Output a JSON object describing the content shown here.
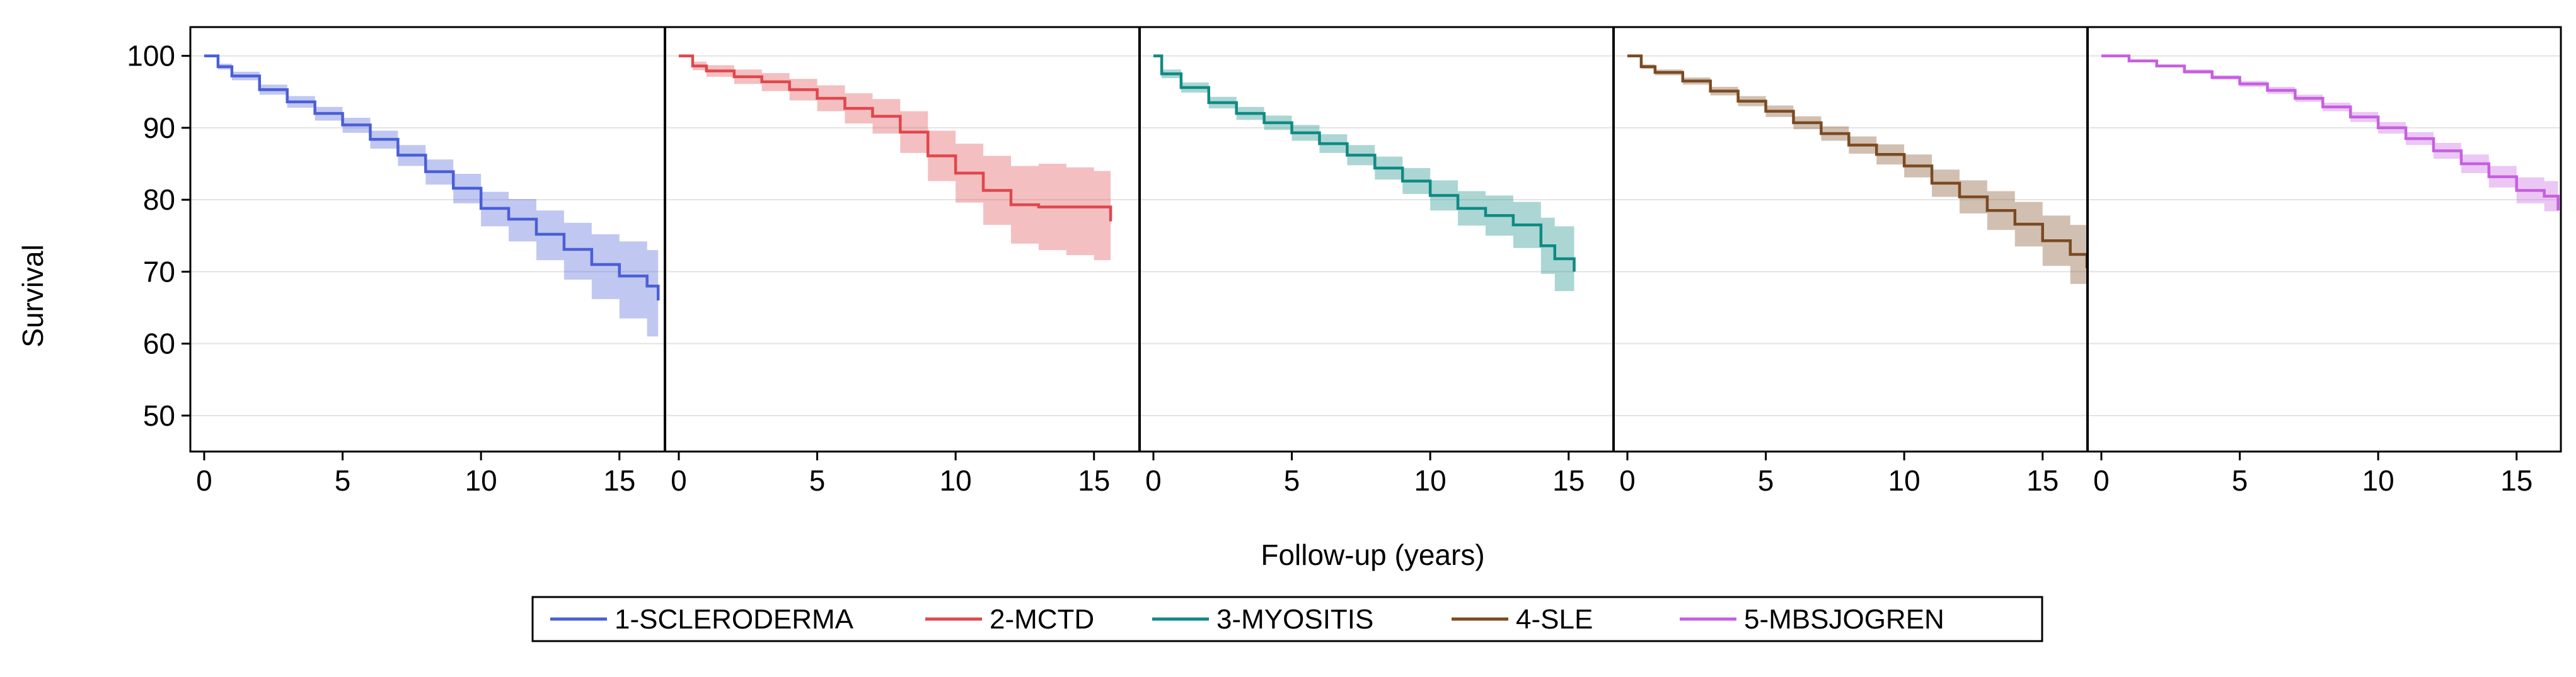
{
  "chart_data": {
    "type": "line",
    "subtype": "kaplan-meier survival panels with confidence bands",
    "ylabel": "Survival",
    "xlabel": "Follow-up (years)",
    "ylim": [
      45,
      104
    ],
    "xlim": [
      -0.5,
      16.6
    ],
    "yticks": [
      50,
      60,
      70,
      80,
      90,
      100
    ],
    "xticks": [
      0,
      5,
      10,
      15
    ],
    "grid": "horizontal",
    "legend_position": "bottom-center",
    "series": [
      {
        "name": "1-SCLERODERMA",
        "color": "#4a5fd6",
        "x": [
          0,
          0.5,
          1,
          2,
          3,
          4,
          5,
          6,
          7,
          8,
          9,
          10,
          11,
          12,
          13,
          14,
          15,
          16,
          16.4
        ],
        "y": [
          100,
          98.5,
          97.2,
          95.3,
          93.6,
          92.0,
          90.4,
          88.4,
          86.2,
          83.9,
          81.6,
          78.8,
          77.3,
          75.2,
          73.1,
          71.0,
          69.4,
          68.0,
          66.0
        ],
        "lower": [
          100,
          98.1,
          96.6,
          94.6,
          92.8,
          91.0,
          89.3,
          87.1,
          84.7,
          82.1,
          79.5,
          76.3,
          74.2,
          71.6,
          68.9,
          66.2,
          63.5,
          61.0,
          59.0
        ],
        "upper": [
          100,
          98.9,
          97.8,
          96.0,
          94.4,
          92.9,
          91.4,
          89.6,
          87.6,
          85.6,
          83.6,
          81.1,
          80.1,
          78.5,
          76.8,
          75.2,
          74.2,
          73.0,
          72.4
        ]
      },
      {
        "name": "2-MCTD",
        "color": "#e0474c",
        "x": [
          0,
          0.5,
          1,
          2,
          3,
          4,
          5,
          6,
          7,
          8,
          9,
          10,
          11,
          12,
          13,
          14,
          15,
          15.6
        ],
        "y": [
          100,
          98.6,
          97.9,
          97.1,
          96.4,
          95.3,
          94.1,
          92.7,
          91.6,
          89.4,
          86.1,
          83.7,
          81.3,
          79.3,
          79.0,
          79.0,
          79.0,
          77.0
        ],
        "lower": [
          100,
          98.0,
          97.1,
          96.1,
          95.1,
          93.8,
          92.3,
          90.6,
          89.2,
          86.5,
          82.6,
          79.6,
          76.5,
          73.9,
          73.0,
          72.3,
          71.6,
          71.0
        ],
        "upper": [
          100,
          99.2,
          98.7,
          98.1,
          97.6,
          96.8,
          95.9,
          94.8,
          94.0,
          92.3,
          89.6,
          87.8,
          86.1,
          84.7,
          85.0,
          84.5,
          84.0,
          83.5
        ]
      },
      {
        "name": "3-MYOSITIS",
        "color": "#0f8a83",
        "x": [
          0,
          0.3,
          1,
          2,
          3,
          4,
          5,
          6,
          7,
          8,
          9,
          10,
          11,
          12,
          13,
          14,
          14.5,
          15.2
        ],
        "y": [
          100,
          97.5,
          95.6,
          93.5,
          92.0,
          90.7,
          89.3,
          87.8,
          86.2,
          84.4,
          82.6,
          80.6,
          78.8,
          77.8,
          76.5,
          73.6,
          71.8,
          70.0
        ],
        "lower": [
          100,
          96.9,
          94.9,
          92.7,
          91.1,
          89.7,
          88.2,
          86.5,
          84.8,
          82.8,
          80.8,
          78.5,
          76.4,
          75.0,
          73.3,
          69.7,
          67.3,
          65.0
        ],
        "upper": [
          100,
          98.1,
          96.3,
          94.3,
          92.9,
          91.7,
          90.4,
          89.1,
          87.6,
          86.0,
          84.4,
          82.7,
          81.2,
          80.6,
          79.7,
          77.5,
          76.3,
          75.0
        ]
      },
      {
        "name": "4-SLE",
        "color": "#7b4a22",
        "x": [
          0,
          0.5,
          1,
          2,
          3,
          4,
          5,
          6,
          7,
          8,
          9,
          10,
          11,
          12,
          13,
          14,
          15,
          16,
          16.6
        ],
        "y": [
          100,
          98.5,
          97.7,
          96.5,
          95.1,
          93.7,
          92.3,
          90.7,
          89.2,
          87.6,
          86.3,
          84.7,
          82.3,
          80.4,
          78.5,
          76.6,
          74.3,
          72.4,
          70.5
        ],
        "lower": [
          100,
          98.2,
          97.3,
          96.0,
          94.5,
          93.0,
          91.5,
          89.8,
          88.2,
          86.4,
          84.9,
          83.1,
          80.4,
          78.1,
          75.8,
          73.5,
          70.8,
          68.3,
          66.5
        ],
        "upper": [
          100,
          98.8,
          98.1,
          97.0,
          95.7,
          94.4,
          93.1,
          91.6,
          90.2,
          88.8,
          87.7,
          86.3,
          84.2,
          82.7,
          81.2,
          79.7,
          77.8,
          76.5,
          75.0
        ]
      },
      {
        "name": "5-MBSJOGREN",
        "color": "#c65fe0",
        "x": [
          0,
          1,
          2,
          3,
          4,
          5,
          6,
          7,
          8,
          9,
          10,
          11,
          12,
          13,
          14,
          15,
          16,
          16.5
        ],
        "y": [
          100,
          99.3,
          98.6,
          97.8,
          97.0,
          96.1,
          95.2,
          94.1,
          92.9,
          91.5,
          90.0,
          88.5,
          86.8,
          85.0,
          83.2,
          81.3,
          80.5,
          78.5
        ],
        "lower": [
          100,
          99.1,
          98.4,
          97.5,
          96.7,
          95.7,
          94.7,
          93.6,
          92.3,
          90.8,
          89.2,
          87.6,
          85.7,
          83.7,
          81.7,
          79.5,
          78.4,
          76.5
        ],
        "upper": [
          100,
          99.5,
          98.8,
          98.1,
          97.3,
          96.5,
          95.7,
          94.6,
          93.5,
          92.2,
          90.8,
          89.4,
          87.9,
          86.3,
          84.7,
          83.1,
          82.6,
          80.5
        ]
      }
    ]
  }
}
